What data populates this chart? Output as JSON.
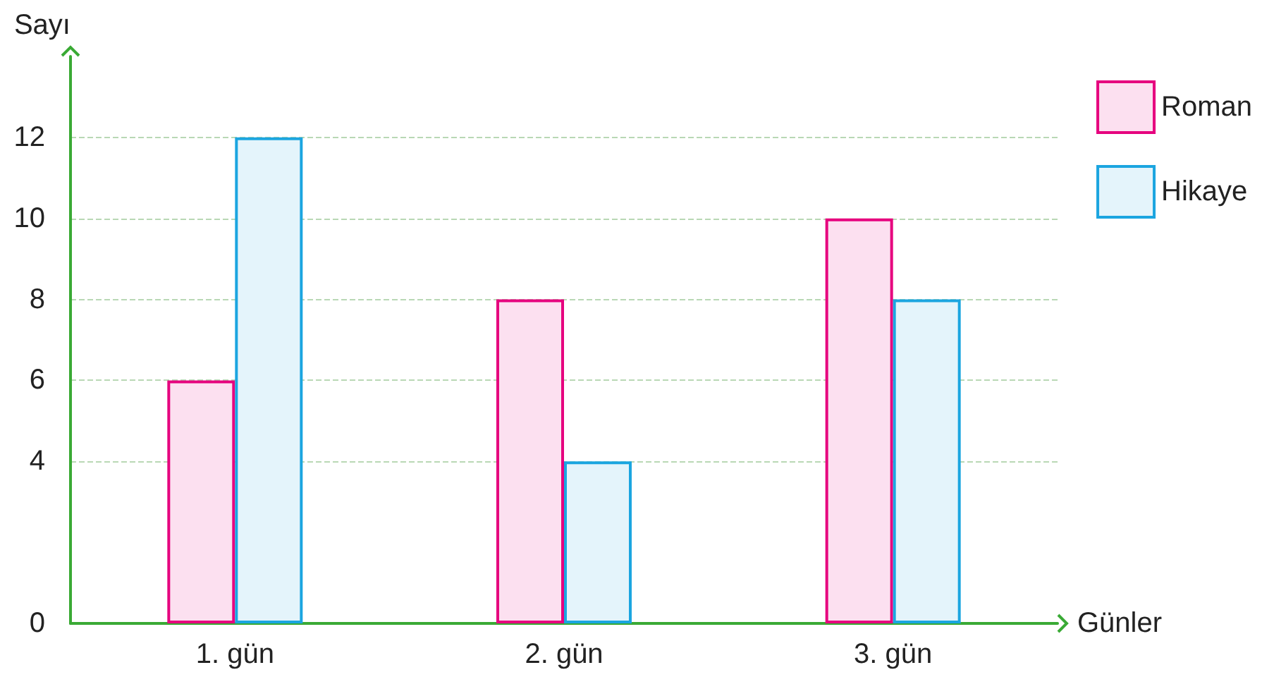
{
  "chart_data": {
    "type": "bar",
    "xlabel": "Günler",
    "ylabel": "Sayı",
    "categories": [
      "1. gün",
      "2. gün",
      "3. gün"
    ],
    "series": [
      {
        "name": "Roman",
        "color": "#e6007e",
        "values": [
          6,
          8,
          10
        ]
      },
      {
        "name": "Hikaye",
        "color": "#1ba5e0",
        "values": [
          12,
          4,
          8
        ]
      }
    ],
    "ylim": [
      0,
      14
    ],
    "yticks": [
      0,
      4,
      6,
      8,
      10,
      12
    ],
    "grid": "y",
    "legend": "top right"
  }
}
